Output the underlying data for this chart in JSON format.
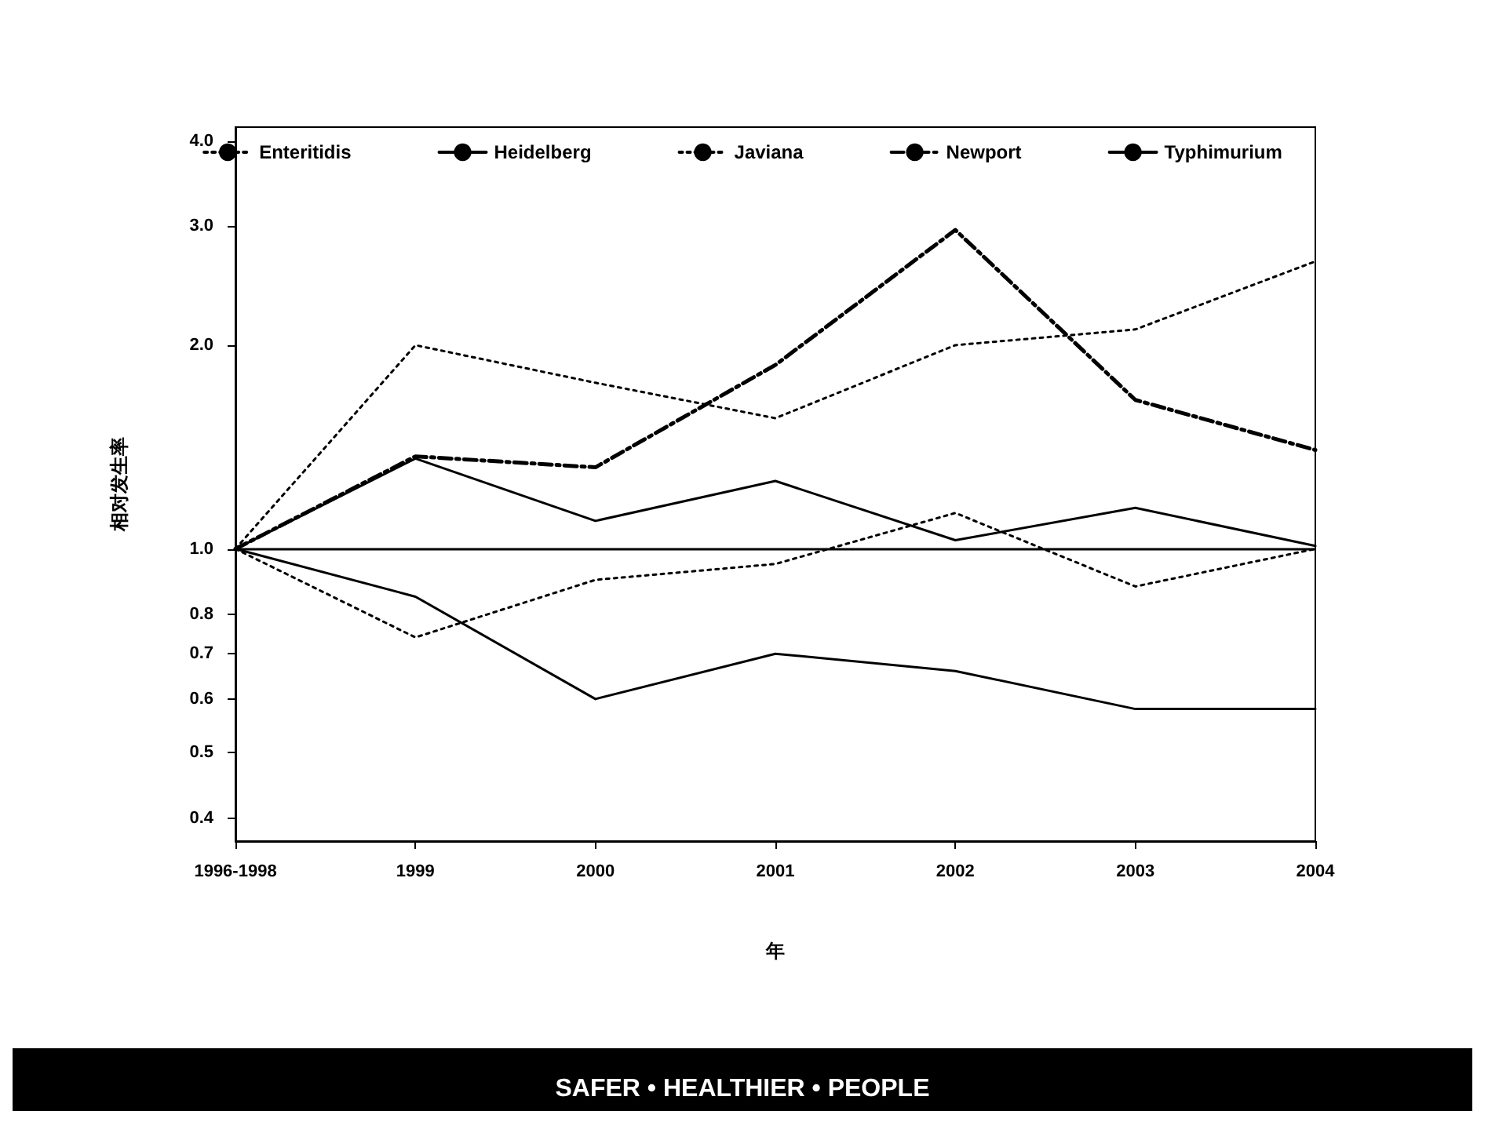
{
  "chart_data": {
    "type": "line",
    "xlabel": "年",
    "ylabel": "相对发生率",
    "categories": [
      "1996-1998",
      "1999",
      "2000",
      "2001",
      "2002",
      "2003",
      "2004"
    ],
    "series": [
      {
        "name": "Enteritidis",
        "color": "#000000",
        "line_style": "dotted",
        "values": [
          1.0,
          0.74,
          0.9,
          0.95,
          1.13,
          0.88,
          1.0
        ]
      },
      {
        "name": "Heidelberg",
        "color": "#000000",
        "line_style": "solid",
        "values": [
          1.0,
          1.36,
          1.1,
          1.26,
          1.03,
          1.15,
          1.01
        ]
      },
      {
        "name": "Javiana",
        "color": "#000000",
        "line_style": "dotted",
        "values": [
          1.0,
          2.0,
          1.76,
          1.56,
          2.0,
          2.11,
          2.66
        ]
      },
      {
        "name": "Newport",
        "color": "#000000",
        "line_style": "dashed",
        "values": [
          1.0,
          1.37,
          1.32,
          1.87,
          2.96,
          1.66,
          1.4
        ]
      },
      {
        "name": "Typhimurium",
        "color": "#000000",
        "line_style": "solid",
        "values": [
          1.0,
          0.85,
          0.6,
          0.7,
          0.66,
          0.58,
          0.58
        ]
      }
    ],
    "log": "y",
    "ylim": [
      0.37,
      4.2
    ],
    "yticks": [
      {
        "value": 0.4,
        "label": "0.4"
      },
      {
        "value": 0.5,
        "label": "0.5"
      },
      {
        "value": 0.6,
        "label": "0.6"
      },
      {
        "value": 0.7,
        "label": "0.7"
      },
      {
        "value": 0.8,
        "label": "0.8"
      },
      {
        "value": 1,
        "label": "1.0"
      },
      {
        "value": 2,
        "label": "2.0"
      },
      {
        "value": 3,
        "label": "3.0"
      },
      {
        "value": 4,
        "label": "4.0"
      }
    ],
    "ref_lines": [
      {
        "axis": "y",
        "value": 1,
        "color": "#000000",
        "line_style": "solid"
      }
    ],
    "legend": "top",
    "grid": false,
    "marker": "none",
    "annotations": [
      "SAFER • HEALTHIER • PEOPLE"
    ]
  }
}
